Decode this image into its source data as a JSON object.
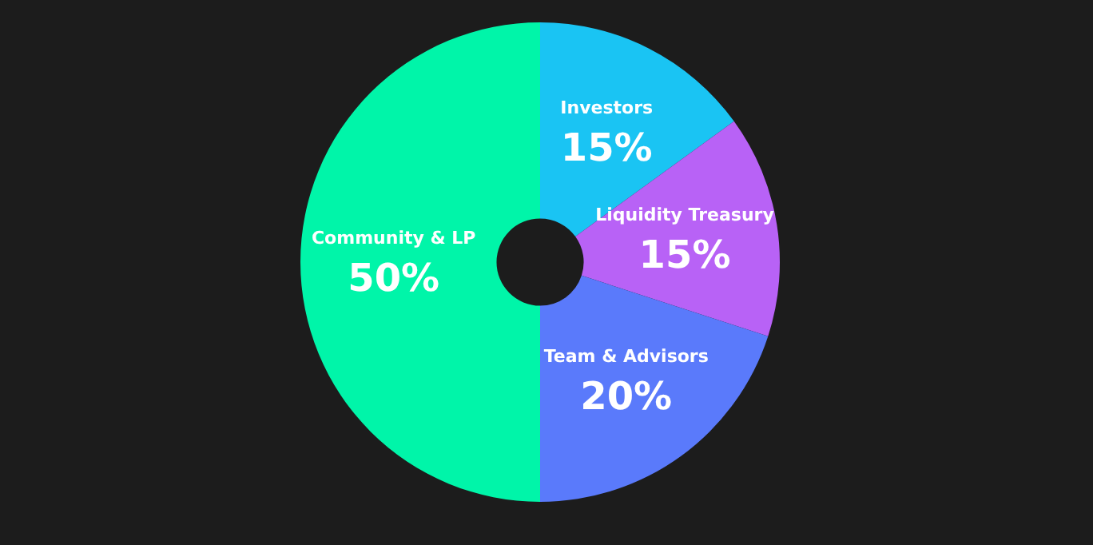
{
  "chart_data": {
    "type": "donut",
    "categories": [
      "Investors",
      "Liquidity Treasury",
      "Team & Advisors",
      "Community & LP"
    ],
    "values": [
      15,
      15,
      20,
      50
    ],
    "value_labels": [
      "15%",
      "15%",
      "20%",
      "50%"
    ],
    "colors": [
      "#1ac4f3",
      "#b862f6",
      "#5a7afb",
      "#00f5a9"
    ],
    "legend": false
  }
}
